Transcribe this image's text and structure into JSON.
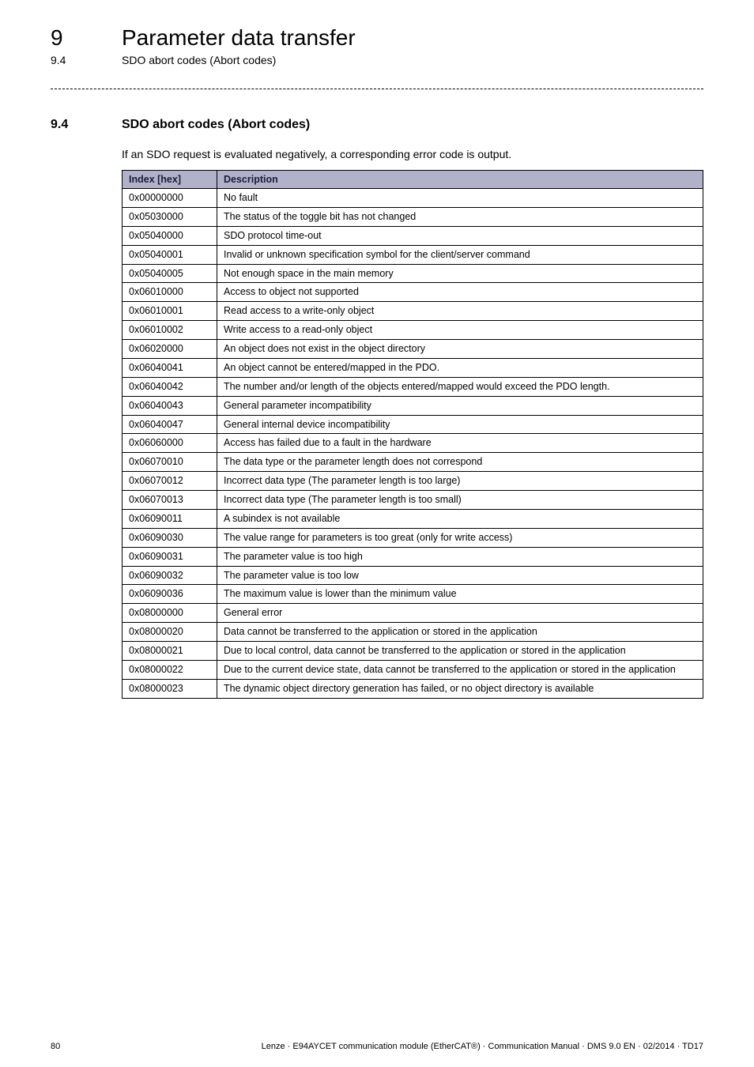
{
  "header": {
    "chapter_num": "9",
    "chapter_title": "Parameter data transfer",
    "section_num": "9.4",
    "section_title": "SDO abort codes (Abort codes)"
  },
  "section": {
    "num": "9.4",
    "title": "SDO abort codes (Abort codes)",
    "intro": "If an SDO request is evaluated negatively, a corresponding error code is output."
  },
  "table": {
    "col_index": "Index [hex]",
    "col_desc": "Description",
    "rows": [
      {
        "idx": "0x00000000",
        "desc": "No fault"
      },
      {
        "idx": "0x05030000",
        "desc": "The status of the toggle bit has not changed"
      },
      {
        "idx": "0x05040000",
        "desc": "SDO protocol time-out"
      },
      {
        "idx": "0x05040001",
        "desc": "Invalid or unknown specification symbol for the client/server command"
      },
      {
        "idx": "0x05040005",
        "desc": "Not enough space in the main memory"
      },
      {
        "idx": "0x06010000",
        "desc": "Access to object not supported"
      },
      {
        "idx": "0x06010001",
        "desc": "Read access to a write-only object"
      },
      {
        "idx": "0x06010002",
        "desc": "Write access to a read-only object"
      },
      {
        "idx": "0x06020000",
        "desc": "An object does not exist in the object directory"
      },
      {
        "idx": "0x06040041",
        "desc": "An object cannot be entered/mapped in the PDO."
      },
      {
        "idx": "0x06040042",
        "desc": "The number and/or length of the objects entered/mapped would exceed the PDO length."
      },
      {
        "idx": "0x06040043",
        "desc": "General parameter incompatibility"
      },
      {
        "idx": "0x06040047",
        "desc": "General internal device incompatibility"
      },
      {
        "idx": "0x06060000",
        "desc": "Access has failed due to a fault in the hardware"
      },
      {
        "idx": "0x06070010",
        "desc": "The data type or the parameter length does not correspond"
      },
      {
        "idx": "0x06070012",
        "desc": "Incorrect data type (The parameter length is too large)"
      },
      {
        "idx": "0x06070013",
        "desc": "Incorrect data type (The parameter length is too small)"
      },
      {
        "idx": "0x06090011",
        "desc": "A subindex is not available"
      },
      {
        "idx": "0x06090030",
        "desc": "The value range for parameters is too great (only for write access)"
      },
      {
        "idx": "0x06090031",
        "desc": "The parameter value is too high"
      },
      {
        "idx": "0x06090032",
        "desc": "The parameter value is too low"
      },
      {
        "idx": "0x06090036",
        "desc": "The maximum value is lower than the minimum value"
      },
      {
        "idx": "0x08000000",
        "desc": "General error"
      },
      {
        "idx": "0x08000020",
        "desc": "Data cannot be transferred to the application or stored in the application"
      },
      {
        "idx": "0x08000021",
        "desc": "Due to local control, data cannot be transferred to the application or stored in the application"
      },
      {
        "idx": "0x08000022",
        "desc": "Due to the current device state, data cannot be transferred to the application or stored in the application"
      },
      {
        "idx": "0x08000023",
        "desc": "The dynamic object directory generation has failed, or no object directory is available"
      }
    ]
  },
  "footer": {
    "page": "80",
    "info": "Lenze · E94AYCET communication module (EtherCAT®) · Communication Manual · DMS 9.0 EN · 02/2014 · TD17"
  }
}
